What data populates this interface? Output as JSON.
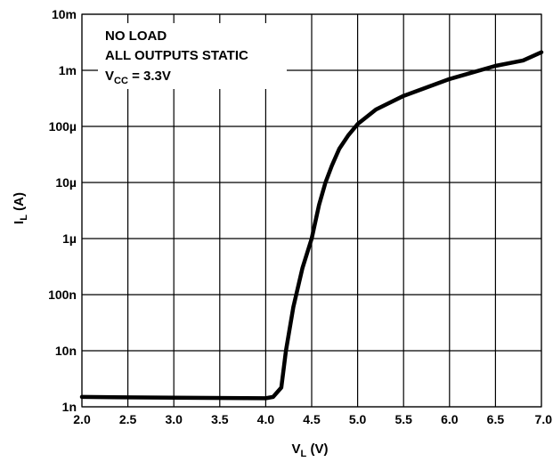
{
  "chart_data": {
    "type": "line",
    "xlabel": {
      "main": "V",
      "sub": "L",
      "unit": " (V)"
    },
    "ylabel": {
      "main": "I",
      "sub": "L",
      "unit": " (A)"
    },
    "xlim": [
      2.0,
      7.0
    ],
    "ylim": [
      1e-09,
      0.01
    ],
    "y_scale": "log",
    "grid": true,
    "x_ticks": [
      {
        "value": 2.0,
        "label": "2.0"
      },
      {
        "value": 2.5,
        "label": "2.5"
      },
      {
        "value": 3.0,
        "label": "3.0"
      },
      {
        "value": 3.5,
        "label": "3.5"
      },
      {
        "value": 4.0,
        "label": "4.0"
      },
      {
        "value": 4.5,
        "label": "4.5"
      },
      {
        "value": 5.0,
        "label": "5.0"
      },
      {
        "value": 5.5,
        "label": "5.5"
      },
      {
        "value": 6.0,
        "label": "6.0"
      },
      {
        "value": 6.5,
        "label": "6.5"
      },
      {
        "value": 7.0,
        "label": "7.0"
      }
    ],
    "y_ticks": [
      {
        "value": 0.01,
        "label": "10m"
      },
      {
        "value": 0.001,
        "label": "1m"
      },
      {
        "value": 0.0001,
        "label": "100µ"
      },
      {
        "value": 1e-05,
        "label": "10µ"
      },
      {
        "value": 1e-06,
        "label": "1µ"
      },
      {
        "value": 1e-07,
        "label": "100n"
      },
      {
        "value": 1e-08,
        "label": "10n"
      },
      {
        "value": 1e-09,
        "label": "1n"
      }
    ],
    "annotation": {
      "lines": [
        "NO LOAD",
        "ALL OUTPUTS STATIC"
      ],
      "vcc": {
        "main": "V",
        "sub": "CC",
        "rest": " = 3.3V"
      },
      "position": "top-left"
    },
    "series": [
      {
        "color": "#000000",
        "points": [
          {
            "x": 2.0,
            "y": 1.5e-09
          },
          {
            "x": 3.0,
            "y": 1.45e-09
          },
          {
            "x": 4.0,
            "y": 1.42e-09
          },
          {
            "x": 4.08,
            "y": 1.5e-09
          },
          {
            "x": 4.17,
            "y": 2.2e-09
          },
          {
            "x": 4.22,
            "y": 1e-08
          },
          {
            "x": 4.3,
            "y": 6e-08
          },
          {
            "x": 4.4,
            "y": 3e-07
          },
          {
            "x": 4.5,
            "y": 1e-06
          },
          {
            "x": 4.58,
            "y": 4e-06
          },
          {
            "x": 4.65,
            "y": 1e-05
          },
          {
            "x": 4.72,
            "y": 2e-05
          },
          {
            "x": 4.8,
            "y": 4e-05
          },
          {
            "x": 4.9,
            "y": 7e-05
          },
          {
            "x": 5.0,
            "y": 0.00011
          },
          {
            "x": 5.2,
            "y": 0.0002
          },
          {
            "x": 5.5,
            "y": 0.00035
          },
          {
            "x": 6.0,
            "y": 0.0007
          },
          {
            "x": 6.5,
            "y": 0.0012
          },
          {
            "x": 6.8,
            "y": 0.0015
          },
          {
            "x": 7.0,
            "y": 0.0021
          }
        ]
      }
    ]
  }
}
